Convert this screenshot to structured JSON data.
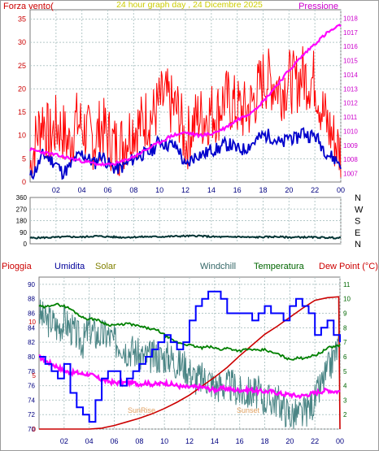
{
  "chart_data": [
    {
      "type": "line",
      "title": "24 hour graph day , 24 Dicembre 2025",
      "left_axis_label": "Forza vento(",
      "right_axis_label": "Pressione",
      "x_ticks": [
        "02",
        "04",
        "06",
        "08",
        "10",
        "12",
        "14",
        "16",
        "18",
        "20",
        "22",
        "00"
      ],
      "y_left_ticks": [
        "0",
        "5",
        "10",
        "15",
        "20",
        "25",
        "30",
        "35"
      ],
      "y_left_lim": [
        0,
        37
      ],
      "y_right_ticks": [
        "1007",
        "1008",
        "1009",
        "1010",
        "1011",
        "1012",
        "1013",
        "1014",
        "1015",
        "1016",
        "1017",
        "1018"
      ],
      "y_right_lim": [
        1006.4,
        1018.6
      ],
      "x_range_hours": [
        0,
        24
      ],
      "series": [
        {
          "color": "#ff0000",
          "axis": "left",
          "x": [
            0,
            0.5,
            1,
            1.5,
            2,
            2.5,
            3,
            3.5,
            4,
            4.5,
            5,
            5.5,
            6,
            6.5,
            7,
            7.5,
            8,
            8.5,
            9,
            9.5,
            10,
            10.5,
            11,
            11.5,
            12,
            12.5,
            13,
            13.5,
            14,
            14.5,
            15,
            15.5,
            16,
            16.5,
            17,
            17.5,
            18,
            18.5,
            19,
            19.5,
            20,
            20.5,
            21,
            21.5,
            22,
            22.5,
            23,
            23.5,
            24
          ],
          "values": [
            3,
            10,
            14,
            9,
            12,
            11,
            8,
            13,
            12,
            10,
            9,
            12,
            10,
            8,
            8,
            10,
            12,
            12,
            14,
            14,
            17,
            18,
            16,
            15,
            8,
            12,
            14,
            14,
            15,
            15,
            18,
            17,
            16,
            15,
            16,
            19,
            22,
            22,
            21,
            20,
            22,
            21,
            23,
            22,
            22,
            16,
            12,
            9,
            6
          ]
        },
        {
          "color": "#0000cc",
          "axis": "left",
          "x": [
            0,
            0.5,
            1,
            1.5,
            2,
            2.5,
            3,
            3.5,
            4,
            4.5,
            5,
            5.5,
            6,
            6.5,
            7,
            7.5,
            8,
            8.5,
            9,
            9.5,
            10,
            10.5,
            11,
            11.5,
            12,
            12.5,
            13,
            13.5,
            14,
            14.5,
            15,
            15.5,
            16,
            16.5,
            17,
            17.5,
            18,
            18.5,
            19,
            19.5,
            20,
            20.5,
            21,
            21.5,
            22,
            22.5,
            23,
            23.5,
            24
          ],
          "values": [
            1,
            3,
            6,
            5,
            4,
            2,
            3,
            5,
            6,
            5,
            4,
            6,
            4,
            3,
            3,
            4,
            5,
            6,
            6,
            7,
            9,
            8,
            8,
            7,
            3,
            5,
            6,
            6,
            7,
            7,
            8,
            8,
            7,
            7,
            8,
            9,
            10,
            10,
            9,
            8,
            10,
            9,
            11,
            10,
            10,
            8,
            6,
            5,
            4
          ]
        },
        {
          "color": "#ff00ff",
          "axis": "right",
          "x": [
            0,
            1,
            2,
            3,
            4,
            5,
            6,
            7,
            8,
            9,
            10,
            11,
            12,
            13,
            14,
            15,
            16,
            17,
            18,
            19,
            20,
            21,
            22,
            23,
            24
          ],
          "values": [
            1008.7,
            1008.5,
            1008.3,
            1008.1,
            1007.9,
            1007.7,
            1007.6,
            1007.8,
            1008.2,
            1008.7,
            1009.2,
            1009.7,
            1009.9,
            1009.7,
            1009.8,
            1010.2,
            1010.8,
            1011.3,
            1012.1,
            1013.2,
            1014.3,
            1015.3,
            1016.2,
            1017.0,
            1017.5
          ]
        }
      ]
    },
    {
      "type": "line",
      "y_left_ticks": [
        "360",
        "270",
        "180",
        "90",
        "0"
      ],
      "right_labels": [
        "N",
        "W",
        "S",
        "E",
        "N"
      ],
      "y_lim": [
        0,
        360
      ],
      "x_range_hours": [
        0,
        24
      ],
      "series": [
        {
          "color": "#003333",
          "x": [
            0,
            1,
            2,
            3,
            4,
            5,
            6,
            7,
            8,
            9,
            10,
            11,
            12,
            13,
            14,
            15,
            16,
            17,
            18,
            19,
            20,
            21,
            22,
            23,
            24
          ],
          "values": [
            45,
            48,
            50,
            55,
            52,
            60,
            55,
            50,
            52,
            55,
            55,
            58,
            60,
            62,
            55,
            52,
            55,
            50,
            52,
            55,
            50,
            52,
            50,
            48,
            45
          ]
        }
      ]
    },
    {
      "type": "line",
      "legend": [
        "Pioggia",
        "Umidita",
        "Solar",
        "Windchill",
        "Temperatura",
        "Dew Point (°C)"
      ],
      "legend_colors": [
        "#cc0000",
        "#000099",
        "#808000",
        "#336666",
        "#006600",
        "#cc0000"
      ],
      "x_ticks": [
        "02",
        "04",
        "06",
        "08",
        "10",
        "12",
        "14",
        "16",
        "18",
        "20",
        "22",
        "00"
      ],
      "y_left_ticks": [
        "90",
        "88",
        "86",
        "84",
        "82",
        "80",
        "78",
        "76",
        "74",
        "72",
        "70"
      ],
      "y_left_lim": [
        70,
        91
      ],
      "y_rain_ticks": [
        "10",
        "5",
        "0"
      ],
      "y_right_ticks": [
        "11",
        "10",
        "9",
        "8",
        "7",
        "6",
        "5",
        "4",
        "3",
        "2"
      ],
      "y_right_lim": [
        1,
        11.5
      ],
      "annotations": [
        "SunRise",
        "Sunset"
      ],
      "series": [
        {
          "name": "Umidita",
          "color": "#0000ff",
          "axis": "left",
          "x": [
            0,
            0.5,
            1,
            1.5,
            2,
            2.5,
            3,
            3.5,
            4,
            4.5,
            5,
            5.5,
            6,
            6.5,
            7,
            7.5,
            8,
            8.5,
            9,
            9.5,
            10,
            10.5,
            11,
            11.5,
            12,
            12.5,
            13,
            13.5,
            14,
            14.5,
            15,
            15.5,
            16,
            16.5,
            17,
            17.5,
            18,
            18.5,
            19,
            19.5,
            20,
            20.5,
            21,
            21.5,
            22,
            22.5,
            23,
            23.5,
            24
          ],
          "values": [
            80,
            79,
            78,
            77,
            79,
            75,
            73,
            72,
            71,
            74,
            77,
            78,
            78,
            76,
            77,
            78,
            79,
            80,
            81,
            82,
            83,
            82,
            81,
            82,
            85,
            87,
            88,
            89,
            89,
            88,
            86,
            86,
            86,
            86,
            85,
            86,
            87,
            86,
            86,
            85,
            87,
            88,
            87,
            86,
            83,
            84,
            85,
            83,
            82
          ]
        },
        {
          "name": "Windchill",
          "color": "#4a8585",
          "axis": "right",
          "x": [
            0,
            0.5,
            1,
            1.5,
            2,
            2.5,
            3,
            3.5,
            4,
            4.5,
            5,
            5.5,
            6,
            6.5,
            7,
            7.5,
            8,
            8.5,
            9,
            9.5,
            10,
            10.5,
            11,
            11.5,
            12,
            12.5,
            13,
            13.5,
            14,
            14.5,
            15,
            15.5,
            16,
            16.5,
            17,
            17.5,
            18,
            18.5,
            19,
            19.5,
            20,
            20.5,
            21,
            21.5,
            22,
            22.5,
            23,
            23.5,
            24
          ],
          "values": [
            9,
            8.5,
            8.5,
            8,
            8.5,
            8,
            7.5,
            7,
            8,
            7.5,
            7.5,
            7.5,
            7,
            7,
            6.5,
            6.5,
            6,
            6,
            6,
            6,
            6,
            6,
            5.5,
            5.5,
            5,
            4.5,
            4.5,
            4.5,
            4,
            4,
            4,
            4,
            3.5,
            3.5,
            3.5,
            3.5,
            3,
            3,
            3,
            2.5,
            2,
            2,
            2,
            2.5,
            3,
            4,
            5,
            6,
            7
          ]
        },
        {
          "name": "Temperatura",
          "color": "#008000",
          "axis": "right",
          "x": [
            0,
            0.5,
            1,
            1.5,
            2,
            2.5,
            3,
            3.5,
            4,
            4.5,
            5,
            5.5,
            6,
            6.5,
            7,
            7.5,
            8,
            8.5,
            9,
            9.5,
            10,
            10.5,
            11,
            11.5,
            12,
            12.5,
            13,
            13.5,
            14,
            14.5,
            15,
            15.5,
            16,
            16.5,
            17,
            17.5,
            18,
            18.5,
            19,
            19.5,
            20,
            20.5,
            21,
            21.5,
            22,
            22.5,
            23,
            23.5,
            24
          ],
          "values": [
            9.5,
            9.4,
            9.6,
            9.6,
            9.5,
            9.3,
            9,
            8.7,
            8.6,
            8.6,
            8.4,
            8.2,
            8.2,
            8.2,
            8.3,
            8.2,
            8.1,
            8.0,
            7.9,
            7.8,
            7.5,
            7.2,
            7.0,
            6.9,
            6.8,
            6.7,
            6.6,
            6.7,
            6.6,
            6.5,
            6.6,
            6.5,
            6.4,
            6.5,
            6.5,
            6.4,
            6.5,
            6.3,
            6.2,
            6.0,
            5.8,
            5.9,
            5.9,
            6.0,
            6.1,
            6.3,
            6.6,
            6.7,
            6.8
          ]
        },
        {
          "name": "Dew Point (°C)",
          "color": "#ff00ff",
          "axis": "right",
          "x": [
            0,
            0.5,
            1,
            1.5,
            2,
            2.5,
            3,
            3.5,
            4,
            4.5,
            5,
            5.5,
            6,
            6.5,
            7,
            7.5,
            8,
            8.5,
            9,
            9.5,
            10,
            10.5,
            11,
            11.5,
            12,
            12.5,
            13,
            13.5,
            14,
            14.5,
            15,
            15.5,
            16,
            16.5,
            17,
            17.5,
            18,
            18.5,
            19,
            19.5,
            20,
            20.5,
            21,
            21.5,
            22,
            22.5,
            23,
            23.5,
            24
          ],
          "values": [
            6.0,
            5.7,
            5.5,
            5.3,
            5.0,
            4.9,
            4.9,
            4.8,
            4.8,
            4.6,
            4.4,
            4.3,
            4.2,
            4.2,
            4.2,
            4.2,
            4.1,
            4.2,
            4.1,
            4.1,
            4.2,
            4.1,
            4.0,
            3.9,
            3.9,
            3.9,
            3.9,
            3.8,
            3.7,
            3.8,
            3.8,
            3.7,
            3.7,
            3.7,
            3.7,
            3.6,
            3.6,
            3.6,
            3.5,
            3.4,
            3.4,
            3.3,
            3.3,
            3.4,
            3.5,
            3.6,
            3.7,
            3.6,
            3.6
          ]
        },
        {
          "name": "Pioggia",
          "color": "#cc0000",
          "axis": "rain",
          "x": [
            0,
            1,
            2,
            3,
            4,
            5,
            6,
            7,
            8,
            9,
            10,
            11,
            12,
            13,
            14,
            15,
            16,
            17,
            18,
            19,
            20,
            21,
            22,
            23,
            23.9,
            24
          ],
          "values": [
            0,
            0,
            0,
            0,
            0,
            0.1,
            0.4,
            0.8,
            1.2,
            1.7,
            2.3,
            3.0,
            3.8,
            4.8,
            5.8,
            6.9,
            8.2,
            9.4,
            10.6,
            11.5,
            12.5,
            13.5,
            14.4,
            14.7,
            14.8,
            0
          ]
        }
      ]
    }
  ]
}
